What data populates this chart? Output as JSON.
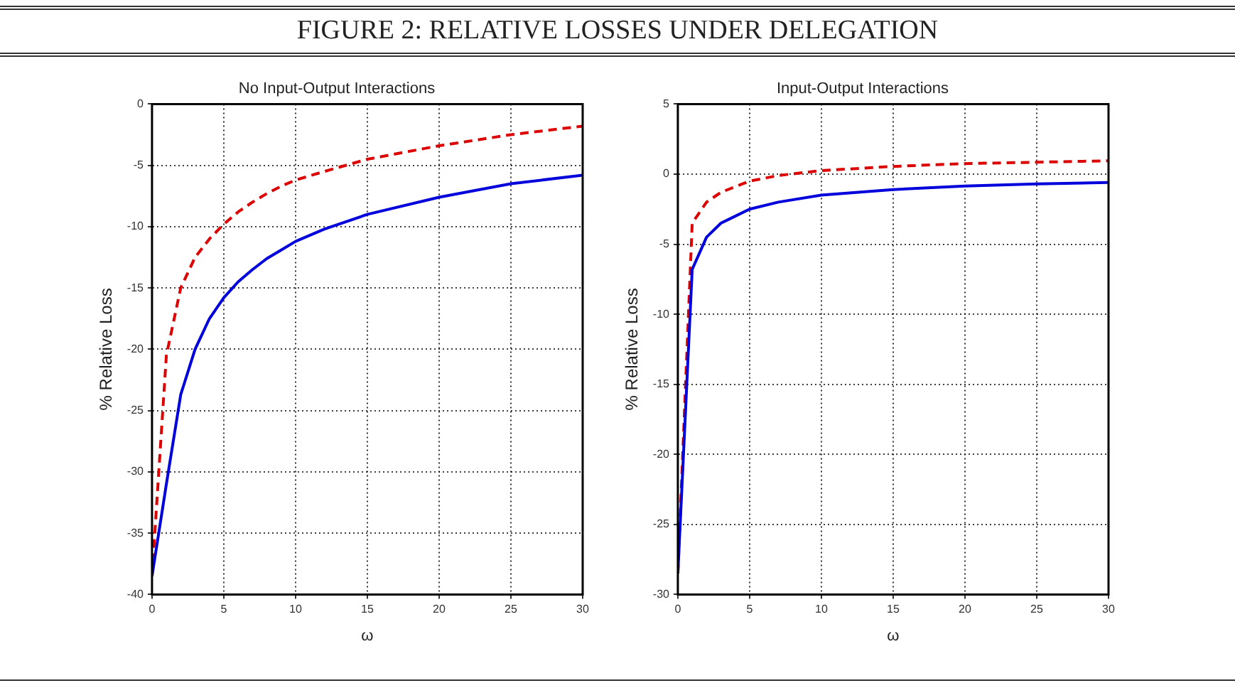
{
  "chart_data": [
    {
      "type": "line",
      "title": "No Input-Output Interactions",
      "xlabel": "ω",
      "ylabel": "% Relative Loss",
      "annotations": [
        "FIGURE 2: RELATIVE LOSSES UNDER DELEGATION"
      ],
      "x": [
        0,
        1,
        2,
        3,
        4,
        5,
        6,
        7,
        8,
        9,
        10,
        12,
        15,
        20,
        25,
        30
      ],
      "series": [
        {
          "color": "#0000dd",
          "line_style": "solid",
          "values": [
            -38.5,
            -31,
            -23.7,
            -20,
            -17.5,
            -15.8,
            -14.5,
            -13.5,
            -12.6,
            -11.9,
            -11.2,
            -10.2,
            -9,
            -7.6,
            -6.5,
            -5.8
          ]
        },
        {
          "color": "#dd0000",
          "line_style": "dashed",
          "values": [
            -38.5,
            -20.5,
            -15,
            -12.5,
            -11,
            -9.8,
            -8.8,
            -8,
            -7.3,
            -6.7,
            -6.2,
            -5.5,
            -4.5,
            -3.4,
            -2.5,
            -1.8
          ]
        }
      ],
      "xlim": [
        0,
        30
      ],
      "xticks": [
        0,
        5,
        10,
        15,
        20,
        25,
        30
      ],
      "ylim": [
        -40,
        0
      ],
      "yticks": [
        -40,
        -35,
        -30,
        -25,
        -20,
        -15,
        -10,
        -5,
        0
      ],
      "grid": true,
      "legend": false,
      "marker": "none"
    },
    {
      "type": "line",
      "title": "Input-Output Interactions",
      "xlabel": "ω",
      "ylabel": "% Relative Loss",
      "x": [
        0,
        1,
        2,
        3,
        4,
        5,
        7,
        10,
        15,
        20,
        25,
        30
      ],
      "series": [
        {
          "color": "#0000dd",
          "line_style": "solid",
          "values": [
            -28.5,
            -6.8,
            -4.5,
            -3.5,
            -3,
            -2.5,
            -2,
            -1.5,
            -1.1,
            -0.85,
            -0.7,
            -0.6
          ]
        },
        {
          "color": "#dd0000",
          "line_style": "dashed",
          "values": [
            -28.5,
            -3.5,
            -2,
            -1.3,
            -0.9,
            -0.5,
            -0.1,
            0.25,
            0.55,
            0.75,
            0.85,
            0.95
          ]
        }
      ],
      "xlim": [
        0,
        30
      ],
      "xticks": [
        0,
        5,
        10,
        15,
        20,
        25,
        30
      ],
      "ylim": [
        -30,
        5
      ],
      "yticks": [
        -30,
        -25,
        -20,
        -15,
        -10,
        -5,
        0,
        5
      ],
      "grid": true,
      "legend": false,
      "marker": "none"
    }
  ]
}
